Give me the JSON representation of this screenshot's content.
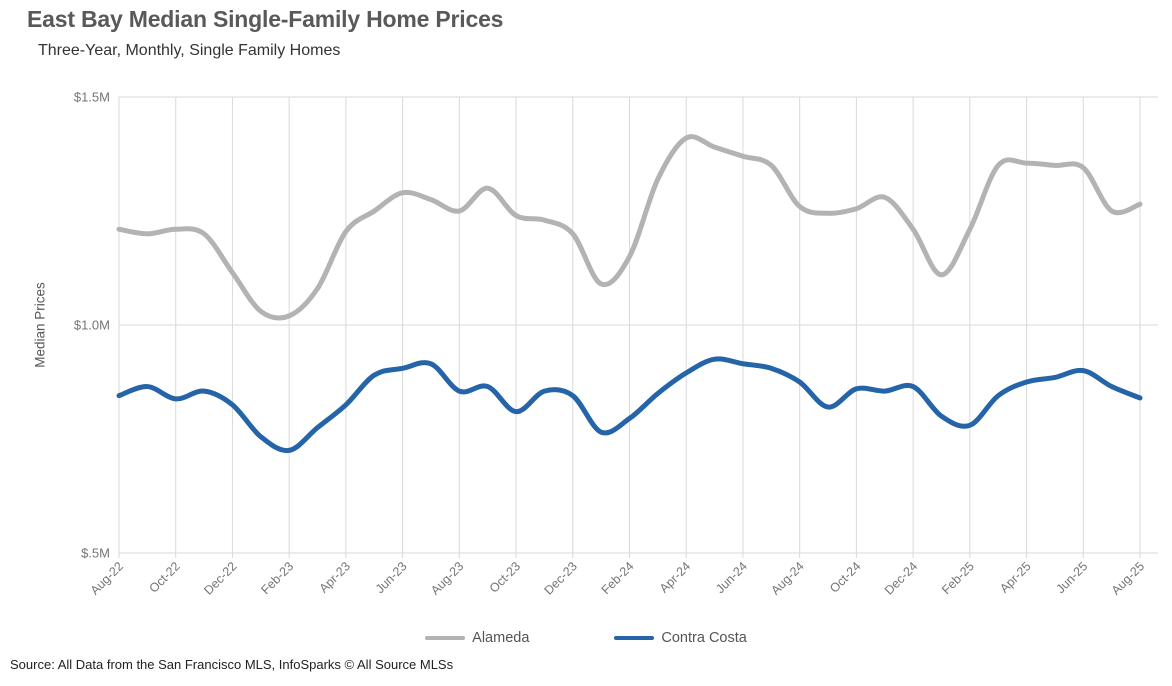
{
  "chart_data": {
    "type": "line",
    "title": "East Bay Median Single-Family Home Prices",
    "subtitle": "Three-Year, Monthly, Single Family Homes",
    "ylabel": "Median Prices",
    "unit": "$M",
    "ylim": [
      0.5,
      1.5
    ],
    "y_ticks": [
      {
        "value": 0.5,
        "label": "$.5M"
      },
      {
        "value": 1.0,
        "label": "$1.0M"
      },
      {
        "value": 1.5,
        "label": "$1.5M"
      }
    ],
    "x": [
      "Aug-22",
      "Sep-22",
      "Oct-22",
      "Nov-22",
      "Dec-22",
      "Jan-23",
      "Feb-23",
      "Mar-23",
      "Apr-23",
      "May-23",
      "Jun-23",
      "Jul-23",
      "Aug-23",
      "Sep-23",
      "Oct-23",
      "Nov-23",
      "Dec-23",
      "Jan-24",
      "Feb-24",
      "Mar-24",
      "Apr-24",
      "May-24",
      "Jun-24",
      "Jul-24",
      "Aug-24",
      "Sep-24",
      "Oct-24",
      "Nov-24",
      "Dec-24",
      "Jan-25",
      "Feb-25",
      "Mar-25",
      "Apr-25",
      "May-25",
      "Jun-25",
      "Jul-25",
      "Aug-25"
    ],
    "x_tick_labels": [
      "Aug-22",
      "Oct-22",
      "Dec-22",
      "Feb-23",
      "Apr-23",
      "Jun-23",
      "Aug-23",
      "Oct-23",
      "Dec-23",
      "Feb-24",
      "Apr-24",
      "Jun-24",
      "Aug-24",
      "Oct-24",
      "Dec-24",
      "Feb-25",
      "Apr-25",
      "Jun-25",
      "Aug-25"
    ],
    "series": [
      {
        "name": "Alameda",
        "color": "#b3b3b3",
        "values": [
          1.21,
          1.2,
          1.21,
          1.2,
          1.115,
          1.03,
          1.02,
          1.08,
          1.205,
          1.25,
          1.29,
          1.275,
          1.25,
          1.3,
          1.24,
          1.23,
          1.2,
          1.09,
          1.15,
          1.32,
          1.41,
          1.39,
          1.37,
          1.35,
          1.26,
          1.245,
          1.255,
          1.28,
          1.21,
          1.11,
          1.21,
          1.35,
          1.355,
          1.35,
          1.345,
          1.25,
          1.265
        ]
      },
      {
        "name": "Contra Costa",
        "color": "#2564a8",
        "values": [
          0.845,
          0.865,
          0.838,
          0.855,
          0.825,
          0.755,
          0.725,
          0.775,
          0.825,
          0.89,
          0.905,
          0.915,
          0.855,
          0.865,
          0.81,
          0.855,
          0.845,
          0.765,
          0.795,
          0.85,
          0.895,
          0.925,
          0.915,
          0.905,
          0.875,
          0.82,
          0.86,
          0.855,
          0.865,
          0.8,
          0.78,
          0.845,
          0.875,
          0.885,
          0.9,
          0.865,
          0.84
        ]
      }
    ],
    "grid": "vertical gridlines every 2 months; horizontal gridlines at $.5M, $1.0M, $1.5M",
    "grid_color": "#d9d9d9",
    "axis_text_color": "#757575",
    "legend_position": "bottom-center"
  },
  "source_note": "Source: All Data from the San Francisco MLS, InfoSparks © All Source MLSs"
}
